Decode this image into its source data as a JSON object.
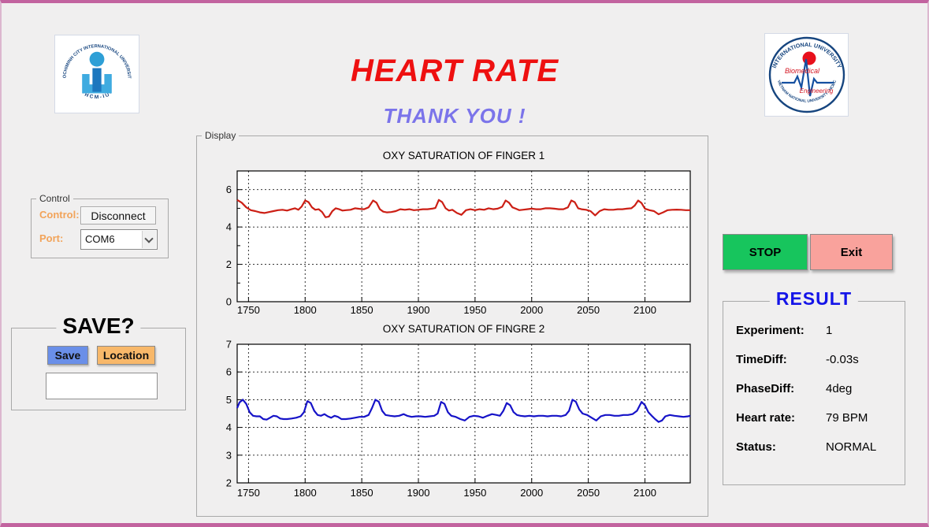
{
  "header": {
    "title": "HEART RATE",
    "subtitle": "THANK YOU !"
  },
  "logos": {
    "left": {
      "top_text": "HOCHIMINH CITY INTERNATIONAL UNIVERSITY",
      "bottom_text": "· H C M - I U ·"
    },
    "right": {
      "top_text": "INTERNATIONAL UNIVERSITY",
      "bottom_text": "VIETNAM NATIONAL UNIVERSITY - HCMC",
      "line1": "Biomedical",
      "line2": "Engineering"
    }
  },
  "control": {
    "legend": "Control",
    "control_label": "Control:",
    "disconnect_button": "Disconnect",
    "port_label": "Port:",
    "port_value": "COM6"
  },
  "save": {
    "legend": "SAVE?",
    "save_button": "Save",
    "location_button": "Location",
    "path_value": ""
  },
  "display": {
    "legend": "Display"
  },
  "actions": {
    "stop_button": "STOP",
    "exit_button": "Exit"
  },
  "result": {
    "legend": "RESULT",
    "rows": [
      {
        "label": "Experiment:",
        "value": "1"
      },
      {
        "label": "TimeDiff:",
        "value": "-0.03s"
      },
      {
        "label": "PhaseDiff:",
        "value": "4deg"
      },
      {
        "label": "Heart rate:",
        "value": "79 BPM"
      },
      {
        "label": "Status:",
        "value": "NORMAL"
      }
    ]
  },
  "colors": {
    "window_border": "#c2639f",
    "title_red": "#ee1010",
    "subtitle_purple": "#7b74ea",
    "label_orange": "#f2a359",
    "save_blue": "#6a8fe8",
    "location_orange": "#f8b86a",
    "stop_green": "#17c55d",
    "exit_pink": "#f9a29c",
    "result_blue": "#1414e8",
    "chart_red": "#cc1f15",
    "chart_blue": "#1613c8"
  },
  "chart_data": [
    {
      "type": "line",
      "title": "OXY SATURATION OF FINGER 1",
      "xlabel": "",
      "ylabel": "",
      "xlim": [
        1740,
        2140
      ],
      "ylim": [
        0,
        7
      ],
      "xticks": [
        1750,
        1800,
        1850,
        1900,
        1950,
        2000,
        2050,
        2100
      ],
      "yticks": [
        0,
        2,
        4,
        6
      ],
      "yminor": [
        1,
        3,
        5
      ],
      "grid": true,
      "legend_position": "none",
      "series": [
        {
          "name": "finger1",
          "color": "#cc1f15",
          "points": [
            [
              1740,
              5.45
            ],
            [
              1744,
              5.3
            ],
            [
              1748,
              5.05
            ],
            [
              1752,
              4.9
            ],
            [
              1756,
              4.85
            ],
            [
              1760,
              4.78
            ],
            [
              1764,
              4.75
            ],
            [
              1768,
              4.8
            ],
            [
              1772,
              4.85
            ],
            [
              1776,
              4.9
            ],
            [
              1780,
              4.92
            ],
            [
              1784,
              4.88
            ],
            [
              1788,
              4.95
            ],
            [
              1791,
              5.0
            ],
            [
              1794,
              4.92
            ],
            [
              1797,
              5.1
            ],
            [
              1800,
              5.42
            ],
            [
              1803,
              5.33
            ],
            [
              1806,
              5.05
            ],
            [
              1809,
              4.92
            ],
            [
              1812,
              4.95
            ],
            [
              1815,
              4.8
            ],
            [
              1818,
              4.52
            ],
            [
              1821,
              4.56
            ],
            [
              1824,
              4.85
            ],
            [
              1827,
              5.0
            ],
            [
              1830,
              4.95
            ],
            [
              1833,
              4.88
            ],
            [
              1836,
              4.9
            ],
            [
              1840,
              4.92
            ],
            [
              1844,
              5.0
            ],
            [
              1848,
              4.97
            ],
            [
              1852,
              4.95
            ],
            [
              1856,
              5.05
            ],
            [
              1860,
              5.42
            ],
            [
              1863,
              5.3
            ],
            [
              1866,
              4.95
            ],
            [
              1869,
              4.82
            ],
            [
              1872,
              4.78
            ],
            [
              1876,
              4.8
            ],
            [
              1880,
              4.85
            ],
            [
              1884,
              4.95
            ],
            [
              1888,
              4.92
            ],
            [
              1892,
              4.95
            ],
            [
              1896,
              4.9
            ],
            [
              1900,
              4.92
            ],
            [
              1904,
              4.95
            ],
            [
              1908,
              4.95
            ],
            [
              1912,
              4.98
            ],
            [
              1915,
              5.02
            ],
            [
              1918,
              5.45
            ],
            [
              1921,
              5.33
            ],
            [
              1924,
              5.0
            ],
            [
              1927,
              4.88
            ],
            [
              1930,
              4.92
            ],
            [
              1934,
              4.75
            ],
            [
              1938,
              4.65
            ],
            [
              1942,
              4.9
            ],
            [
              1946,
              4.95
            ],
            [
              1950,
              4.9
            ],
            [
              1954,
              4.95
            ],
            [
              1958,
              4.92
            ],
            [
              1962,
              5.0
            ],
            [
              1966,
              4.95
            ],
            [
              1970,
              4.98
            ],
            [
              1974,
              5.08
            ],
            [
              1977,
              5.42
            ],
            [
              1980,
              5.3
            ],
            [
              1983,
              5.05
            ],
            [
              1986,
              4.98
            ],
            [
              1989,
              4.9
            ],
            [
              1992,
              4.92
            ],
            [
              1996,
              4.95
            ],
            [
              2000,
              4.98
            ],
            [
              2004,
              4.95
            ],
            [
              2008,
              4.95
            ],
            [
              2012,
              5.0
            ],
            [
              2016,
              5.0
            ],
            [
              2020,
              4.98
            ],
            [
              2024,
              4.95
            ],
            [
              2028,
              4.95
            ],
            [
              2032,
              5.05
            ],
            [
              2035,
              5.42
            ],
            [
              2038,
              5.33
            ],
            [
              2041,
              5.0
            ],
            [
              2044,
              4.95
            ],
            [
              2048,
              4.92
            ],
            [
              2052,
              4.85
            ],
            [
              2056,
              4.62
            ],
            [
              2060,
              4.85
            ],
            [
              2064,
              4.95
            ],
            [
              2068,
              4.92
            ],
            [
              2072,
              4.92
            ],
            [
              2076,
              4.95
            ],
            [
              2080,
              4.95
            ],
            [
              2084,
              4.98
            ],
            [
              2088,
              5.0
            ],
            [
              2091,
              5.15
            ],
            [
              2094,
              5.42
            ],
            [
              2097,
              5.28
            ],
            [
              2100,
              4.98
            ],
            [
              2104,
              4.9
            ],
            [
              2108,
              4.85
            ],
            [
              2112,
              4.68
            ],
            [
              2116,
              4.78
            ],
            [
              2120,
              4.9
            ],
            [
              2124,
              4.92
            ],
            [
              2128,
              4.93
            ],
            [
              2132,
              4.92
            ],
            [
              2136,
              4.9
            ],
            [
              2140,
              4.9
            ]
          ]
        }
      ]
    },
    {
      "type": "line",
      "title": "OXY SATURATION OF FINGRE 2",
      "xlabel": "",
      "ylabel": "",
      "xlim": [
        1740,
        2140
      ],
      "ylim": [
        2,
        7
      ],
      "xticks": [
        1750,
        1800,
        1850,
        1900,
        1950,
        2000,
        2050,
        2100
      ],
      "yticks": [
        2,
        3,
        4,
        5,
        6,
        7
      ],
      "yminor": [],
      "grid": true,
      "legend_position": "none",
      "series": [
        {
          "name": "finger2",
          "color": "#1613c8",
          "points": [
            [
              1740,
              4.7
            ],
            [
              1742,
              4.9
            ],
            [
              1745,
              5.0
            ],
            [
              1748,
              4.85
            ],
            [
              1751,
              4.55
            ],
            [
              1754,
              4.42
            ],
            [
              1757,
              4.4
            ],
            [
              1760,
              4.4
            ],
            [
              1763,
              4.3
            ],
            [
              1766,
              4.28
            ],
            [
              1769,
              4.35
            ],
            [
              1772,
              4.42
            ],
            [
              1775,
              4.4
            ],
            [
              1778,
              4.32
            ],
            [
              1781,
              4.3
            ],
            [
              1784,
              4.3
            ],
            [
              1788,
              4.32
            ],
            [
              1792,
              4.35
            ],
            [
              1796,
              4.4
            ],
            [
              1799,
              4.55
            ],
            [
              1802,
              4.95
            ],
            [
              1805,
              4.88
            ],
            [
              1808,
              4.6
            ],
            [
              1811,
              4.45
            ],
            [
              1814,
              4.42
            ],
            [
              1817,
              4.48
            ],
            [
              1820,
              4.4
            ],
            [
              1823,
              4.35
            ],
            [
              1826,
              4.42
            ],
            [
              1829,
              4.38
            ],
            [
              1832,
              4.3
            ],
            [
              1836,
              4.3
            ],
            [
              1840,
              4.32
            ],
            [
              1844,
              4.35
            ],
            [
              1848,
              4.38
            ],
            [
              1852,
              4.38
            ],
            [
              1856,
              4.45
            ],
            [
              1859,
              4.7
            ],
            [
              1862,
              5.0
            ],
            [
              1865,
              4.93
            ],
            [
              1868,
              4.6
            ],
            [
              1871,
              4.45
            ],
            [
              1875,
              4.42
            ],
            [
              1879,
              4.4
            ],
            [
              1883,
              4.42
            ],
            [
              1887,
              4.48
            ],
            [
              1890,
              4.42
            ],
            [
              1894,
              4.38
            ],
            [
              1898,
              4.4
            ],
            [
              1902,
              4.4
            ],
            [
              1906,
              4.38
            ],
            [
              1910,
              4.4
            ],
            [
              1914,
              4.42
            ],
            [
              1917,
              4.5
            ],
            [
              1920,
              4.92
            ],
            [
              1923,
              4.85
            ],
            [
              1926,
              4.55
            ],
            [
              1929,
              4.42
            ],
            [
              1933,
              4.38
            ],
            [
              1937,
              4.3
            ],
            [
              1941,
              4.25
            ],
            [
              1945,
              4.38
            ],
            [
              1949,
              4.42
            ],
            [
              1953,
              4.4
            ],
            [
              1957,
              4.35
            ],
            [
              1961,
              4.42
            ],
            [
              1965,
              4.48
            ],
            [
              1969,
              4.45
            ],
            [
              1972,
              4.42
            ],
            [
              1975,
              4.6
            ],
            [
              1978,
              4.88
            ],
            [
              1981,
              4.8
            ],
            [
              1984,
              4.55
            ],
            [
              1987,
              4.45
            ],
            [
              1990,
              4.42
            ],
            [
              1994,
              4.4
            ],
            [
              1998,
              4.42
            ],
            [
              2002,
              4.4
            ],
            [
              2006,
              4.42
            ],
            [
              2010,
              4.42
            ],
            [
              2014,
              4.4
            ],
            [
              2018,
              4.42
            ],
            [
              2022,
              4.42
            ],
            [
              2026,
              4.4
            ],
            [
              2030,
              4.45
            ],
            [
              2033,
              4.6
            ],
            [
              2036,
              5.0
            ],
            [
              2039,
              4.93
            ],
            [
              2042,
              4.65
            ],
            [
              2045,
              4.5
            ],
            [
              2049,
              4.45
            ],
            [
              2053,
              4.35
            ],
            [
              2057,
              4.25
            ],
            [
              2061,
              4.4
            ],
            [
              2065,
              4.45
            ],
            [
              2069,
              4.45
            ],
            [
              2073,
              4.42
            ],
            [
              2077,
              4.42
            ],
            [
              2081,
              4.45
            ],
            [
              2085,
              4.45
            ],
            [
              2089,
              4.48
            ],
            [
              2093,
              4.6
            ],
            [
              2097,
              4.92
            ],
            [
              2100,
              4.8
            ],
            [
              2103,
              4.55
            ],
            [
              2106,
              4.42
            ],
            [
              2109,
              4.3
            ],
            [
              2112,
              4.2
            ],
            [
              2115,
              4.25
            ],
            [
              2118,
              4.4
            ],
            [
              2122,
              4.45
            ],
            [
              2126,
              4.42
            ],
            [
              2130,
              4.4
            ],
            [
              2134,
              4.38
            ],
            [
              2138,
              4.4
            ],
            [
              2140,
              4.42
            ]
          ]
        }
      ]
    }
  ]
}
